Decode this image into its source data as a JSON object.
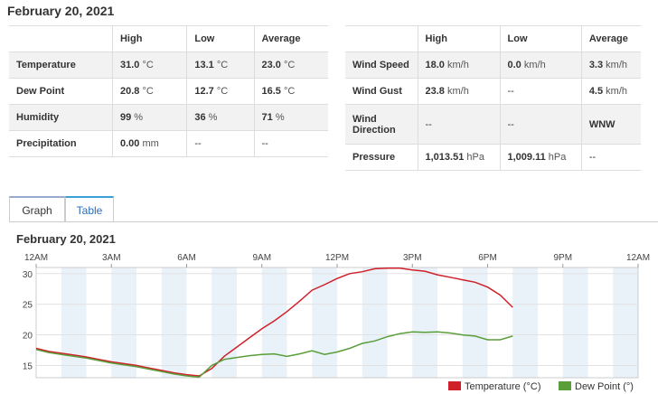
{
  "date_heading": "February 20, 2021",
  "left_table": {
    "headers": [
      "",
      "High",
      "Low",
      "Average"
    ],
    "rows": [
      {
        "label": "Temperature",
        "high": "31.0",
        "high_unit": "°C",
        "low": "13.1",
        "low_unit": "°C",
        "avg": "23.0",
        "avg_unit": "°C"
      },
      {
        "label": "Dew Point",
        "high": "20.8",
        "high_unit": "°C",
        "low": "12.7",
        "low_unit": "°C",
        "avg": "16.5",
        "avg_unit": "°C"
      },
      {
        "label": "Humidity",
        "high": "99",
        "high_unit": "%",
        "low": "36",
        "low_unit": "%",
        "avg": "71",
        "avg_unit": "%"
      },
      {
        "label": "Precipitation",
        "high": "0.00",
        "high_unit": "mm",
        "low": "--",
        "low_unit": "",
        "avg": "--",
        "avg_unit": ""
      }
    ]
  },
  "right_table": {
    "headers": [
      "",
      "High",
      "Low",
      "Average"
    ],
    "rows": [
      {
        "label": "Wind Speed",
        "high": "18.0",
        "high_unit": "km/h",
        "low": "0.0",
        "low_unit": "km/h",
        "avg": "3.3",
        "avg_unit": "km/h"
      },
      {
        "label": "Wind Gust",
        "high": "23.8",
        "high_unit": "km/h",
        "low": "--",
        "low_unit": "",
        "avg": "4.5",
        "avg_unit": "km/h"
      },
      {
        "label": "Wind Direction",
        "high": "--",
        "high_unit": "",
        "low": "--",
        "low_unit": "",
        "avg": "WNW",
        "avg_unit": ""
      },
      {
        "label": "Pressure",
        "high": "1,013.51",
        "high_unit": "hPa",
        "low": "1,009.11",
        "low_unit": "hPa",
        "avg": "--",
        "avg_unit": ""
      }
    ]
  },
  "tabs": [
    {
      "label": "Graph",
      "active": true
    },
    {
      "label": "Table",
      "active": false
    }
  ],
  "chart_title": "February 20, 2021",
  "chart_data": {
    "type": "line",
    "title": "February 20, 2021",
    "x_tick_labels": [
      "12AM",
      "3AM",
      "6AM",
      "9AM",
      "12PM",
      "3PM",
      "6PM",
      "9PM",
      "12AM"
    ],
    "x_tick_hours": [
      0,
      3,
      6,
      9,
      12,
      15,
      18,
      21,
      24
    ],
    "x_range_hours": [
      0,
      24
    ],
    "y_range": [
      13,
      31
    ],
    "y_ticks": [
      15,
      20,
      25,
      30
    ],
    "grid": true,
    "legend_position": "bottom-right",
    "series": [
      {
        "name": "Temperature (°C)",
        "color": "#d0202a",
        "x_hours": [
          0,
          0.5,
          1,
          1.5,
          2,
          2.5,
          3,
          3.5,
          4,
          4.5,
          5,
          5.5,
          6,
          6.5,
          7,
          7.5,
          8,
          8.5,
          9,
          9.5,
          10,
          10.5,
          11,
          11.5,
          12,
          12.5,
          13,
          13.5,
          14,
          14.5,
          15,
          15.5,
          16,
          16.5,
          17,
          17.5,
          18,
          18.5,
          19
        ],
        "values": [
          17.8,
          17.3,
          17.0,
          16.7,
          16.4,
          16.0,
          15.6,
          15.3,
          15.0,
          14.6,
          14.2,
          13.8,
          13.5,
          13.3,
          14.5,
          16.5,
          18.0,
          19.5,
          21.0,
          22.3,
          23.8,
          25.5,
          27.3,
          28.2,
          29.2,
          30.0,
          30.3,
          30.8,
          30.9,
          30.9,
          30.6,
          30.4,
          29.8,
          29.4,
          29.0,
          28.6,
          27.8,
          26.5,
          24.5
        ]
      },
      {
        "name": "Dew Point (°)",
        "color": "#5a9e3a",
        "x_hours": [
          0,
          0.5,
          1,
          1.5,
          2,
          2.5,
          3,
          3.5,
          4,
          4.5,
          5,
          5.5,
          6,
          6.5,
          7,
          7.5,
          8,
          8.5,
          9,
          9.5,
          10,
          10.5,
          11,
          11.5,
          12,
          12.5,
          13,
          13.5,
          14,
          14.5,
          15,
          15.5,
          16,
          16.5,
          17,
          17.5,
          18,
          18.5,
          19
        ],
        "values": [
          17.6,
          17.1,
          16.8,
          16.5,
          16.2,
          15.8,
          15.4,
          15.1,
          14.8,
          14.4,
          14.0,
          13.6,
          13.3,
          13.1,
          15.0,
          16.0,
          16.3,
          16.6,
          16.8,
          16.9,
          16.5,
          16.9,
          17.4,
          16.8,
          17.2,
          17.8,
          18.6,
          19.0,
          19.7,
          20.2,
          20.5,
          20.4,
          20.5,
          20.3,
          20.0,
          19.8,
          19.2,
          19.2,
          19.8
        ]
      }
    ]
  }
}
